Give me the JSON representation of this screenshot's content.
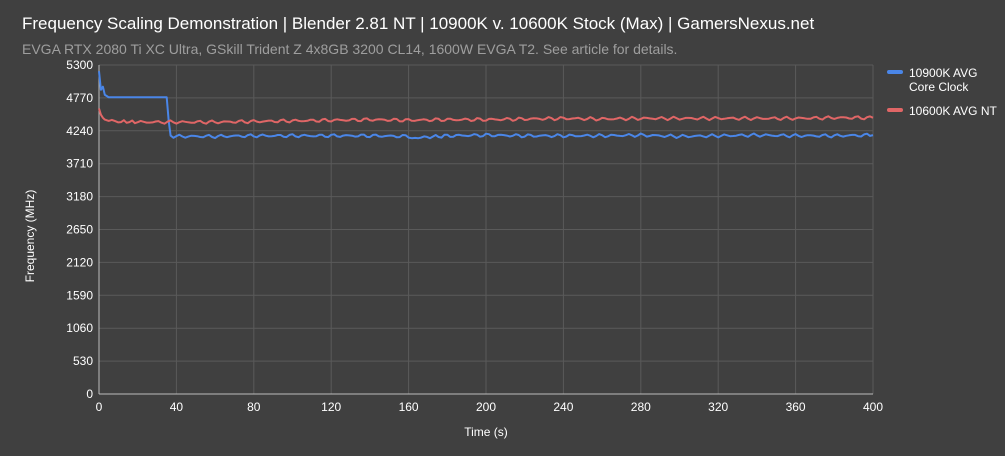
{
  "chart_data": {
    "type": "line",
    "title": "Frequency Scaling Demonstration | Blender 2.81 NT | 10900K v. 10600K Stock (Max) | GamersNexus.net",
    "subtitle": "EVGA RTX 2080 Ti XC Ultra, GSkill Trident Z 4x8GB 3200 CL14, 1600W EVGA T2. See article for details.",
    "xlabel": "Time (s)",
    "ylabel": "Frequency (MHz)",
    "xlim": [
      0,
      400
    ],
    "ylim": [
      0,
      5300
    ],
    "x_ticks": [
      "0",
      "40",
      "80",
      "120",
      "160",
      "200",
      "240",
      "280",
      "320",
      "360",
      "400"
    ],
    "y_ticks": [
      "0",
      "530",
      "1060",
      "1590",
      "2120",
      "2650",
      "3180",
      "3710",
      "4240",
      "4770",
      "5300"
    ],
    "grid": true,
    "legend_position": "right",
    "series": [
      {
        "name": "10900K AVG Core Clock",
        "color": "#4a86e8",
        "x": [
          0,
          1,
          2,
          3,
          4,
          5,
          10,
          20,
          30,
          35,
          36,
          37,
          40,
          60,
          80,
          100,
          120,
          140,
          160,
          165,
          180,
          200,
          220,
          240,
          260,
          280,
          300,
          320,
          340,
          360,
          380,
          400
        ],
        "y": [
          5200,
          4900,
          4950,
          4820,
          4800,
          4780,
          4780,
          4780,
          4780,
          4780,
          4400,
          4160,
          4150,
          4150,
          4160,
          4160,
          4160,
          4160,
          4150,
          4130,
          4160,
          4170,
          4160,
          4160,
          4160,
          4170,
          4150,
          4160,
          4170,
          4160,
          4160,
          4170
        ]
      },
      {
        "name": "10600K AVG NT",
        "color": "#e06666",
        "x": [
          0,
          1,
          2,
          3,
          5,
          10,
          20,
          40,
          60,
          80,
          100,
          120,
          140,
          160,
          180,
          200,
          220,
          240,
          260,
          280,
          300,
          320,
          340,
          360,
          380,
          400
        ],
        "y": [
          4600,
          4500,
          4450,
          4420,
          4400,
          4390,
          4380,
          4380,
          4380,
          4390,
          4400,
          4410,
          4420,
          4410,
          4420,
          4420,
          4430,
          4440,
          4430,
          4440,
          4440,
          4440,
          4440,
          4440,
          4450,
          4450
        ]
      }
    ]
  }
}
